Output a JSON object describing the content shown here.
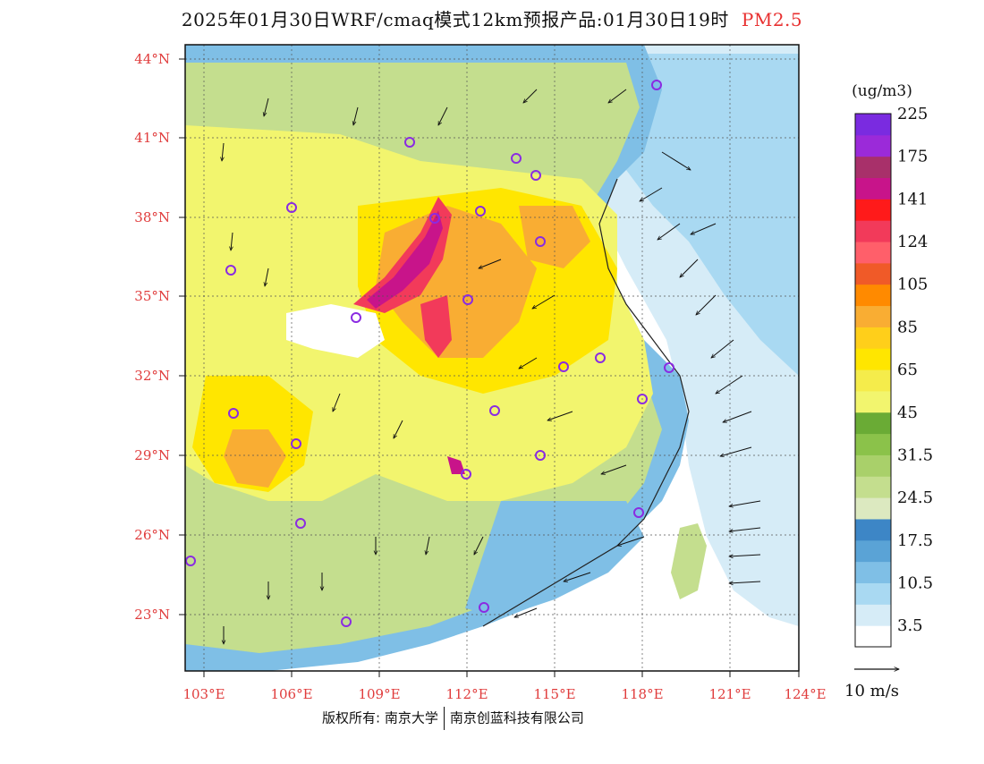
{
  "title": {
    "main": "2025年01月30日WRF/cmaq模式12km预报产品:01月30日19时",
    "species": "PM2.5"
  },
  "colors": {
    "species_title": "#e83030",
    "axis_labels": "#e03c3c",
    "station_marker": "#8a2be2",
    "coast_line": "#222222"
  },
  "axes": {
    "lat_labels": [
      "44°N",
      "41°N",
      "38°N",
      "35°N",
      "32°N",
      "29°N",
      "26°N",
      "23°N"
    ],
    "lon_labels": [
      "103°E",
      "106°E",
      "109°E",
      "112°E",
      "115°E",
      "118°E",
      "121°E",
      "124°E"
    ]
  },
  "colorbar": {
    "unit": "(ug/m3)",
    "colors": [
      "#ffffff",
      "#d6ecf7",
      "#a9d9f2",
      "#7fbfe6",
      "#5aa3d6",
      "#3d86c6",
      "#dce9c0",
      "#c4de8e",
      "#a9d06a",
      "#8bc24a",
      "#6aab35",
      "#f2f56e",
      "#f5ec4b",
      "#ffe600",
      "#ffcf1a",
      "#f9ad33",
      "#ff8a00",
      "#f05a28",
      "#ff5f6a",
      "#f23a5a",
      "#ff1a1a",
      "#c8148a",
      "#a8306a",
      "#9b2ad9",
      "#7a2be0"
    ],
    "tick_labels": [
      "3.5",
      "10.5",
      "17.5",
      "24.5",
      "31.5",
      "45",
      "65",
      "85",
      "105",
      "124",
      "141",
      "175",
      "225"
    ]
  },
  "wind_legend": {
    "label": "10 m/s"
  },
  "footer": {
    "left": "版权所有: 南京大学",
    "right": "南京创蓝科技有限公司"
  }
}
